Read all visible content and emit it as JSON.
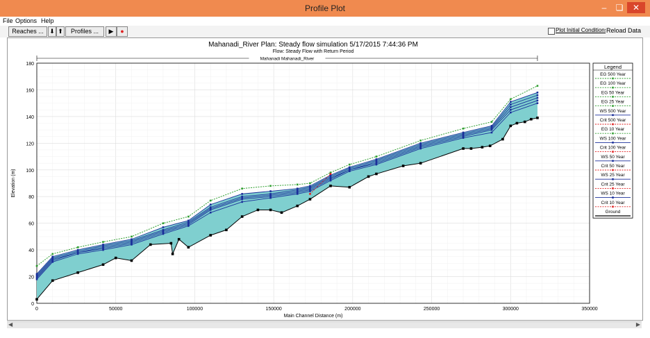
{
  "window": {
    "title": "Profile Plot"
  },
  "menu": [
    "File",
    "Options",
    "Help"
  ],
  "toolbar": {
    "reaches": "Reaches ...",
    "profiles": "Profiles ...",
    "plot_initial": "Plot Initial Conditions",
    "reload": "Reload Data"
  },
  "colors": {
    "titlebar": "#f08a4f",
    "fill": "#7fcfcf",
    "ws": "#1a2f9a",
    "eg": "#2e9e2e",
    "crit": "#e02020",
    "ground": "#000000"
  },
  "chart_data": {
    "type": "line",
    "title": "Mahanadi_River       Plan: Steady flow simulation    5/17/2015  7:44:36 PM",
    "subtitle": "Flow: Steady Flow with Return Period",
    "reach_label": "Mahanadi Mahanadi_River",
    "xlabel": "Main Channel Distance (m)",
    "ylabel": "Elevation (m)",
    "xlim": [
      0,
      350000
    ],
    "ylim": [
      0,
      180
    ],
    "xticks": [
      "0",
      "50000",
      "100000",
      "150000",
      "200000",
      "250000",
      "300000",
      "350000"
    ],
    "yticks": [
      "0",
      "20",
      "40",
      "60",
      "80",
      "100",
      "120",
      "140",
      "160",
      "180"
    ],
    "grid": true,
    "legend_position": "right",
    "legend_title": "Legend",
    "legend": [
      "EG 500 Year",
      "EG 100 Year",
      "EG 50 Year",
      "EG 25 Year",
      "WS 500 Year",
      "Crit 500 Year",
      "EG 10 Year",
      "WS 100 Year",
      "Crit 100 Year",
      "WS 50 Year",
      "Crit 50 Year",
      "WS 25 Year",
      "Crit 25 Year",
      "WS 10 Year",
      "Crit 10 Year",
      "Ground"
    ],
    "ground": {
      "x": [
        0,
        10000,
        26000,
        42000,
        50000,
        60000,
        72000,
        85000,
        86000,
        90000,
        96000,
        110000,
        120000,
        130000,
        140000,
        148000,
        155000,
        165000,
        173000,
        186000,
        198000,
        210000,
        215000,
        232000,
        243000,
        270000,
        275000,
        282000,
        287000,
        295000,
        300000,
        304000,
        309000,
        313000,
        317000
      ],
      "y": [
        3,
        17,
        23,
        29,
        34,
        32,
        44,
        45,
        37,
        48,
        42,
        51,
        55,
        65,
        70,
        70,
        68,
        73,
        78,
        88,
        87,
        95,
        97,
        103,
        105,
        116,
        116,
        117,
        118,
        123,
        133,
        135,
        136,
        138,
        139
      ]
    },
    "series": [
      {
        "name": "WS 10 Year",
        "x": [
          0,
          10000,
          26000,
          42000,
          60000,
          80000,
          96000,
          110000,
          130000,
          148000,
          165000,
          173000,
          186000,
          198000,
          215000,
          243000,
          270000,
          288000,
          300000,
          317000
        ],
        "y": [
          18,
          31,
          37,
          40,
          44,
          52,
          58,
          68,
          76,
          79,
          82,
          84,
          92,
          99,
          104,
          116,
          124,
          128,
          143,
          150
        ]
      },
      {
        "name": "WS 25 Year",
        "x": [
          0,
          10000,
          26000,
          42000,
          60000,
          80000,
          96000,
          110000,
          130000,
          148000,
          165000,
          173000,
          186000,
          198000,
          215000,
          243000,
          270000,
          288000,
          300000,
          317000
        ],
        "y": [
          19,
          32,
          38,
          41,
          45,
          53,
          59,
          70,
          78,
          80,
          83,
          85,
          93,
          100,
          105,
          117,
          125,
          130,
          145,
          152
        ]
      },
      {
        "name": "WS 50 Year",
        "x": [
          0,
          10000,
          26000,
          42000,
          60000,
          80000,
          96000,
          110000,
          130000,
          148000,
          165000,
          173000,
          186000,
          198000,
          215000,
          243000,
          270000,
          288000,
          300000,
          317000
        ],
        "y": [
          20,
          33,
          38,
          42,
          46,
          54,
          60,
          71,
          79,
          81,
          84,
          86,
          94,
          100,
          106,
          118,
          126,
          131,
          147,
          154
        ]
      },
      {
        "name": "WS 100 Year",
        "x": [
          0,
          10000,
          26000,
          42000,
          60000,
          80000,
          96000,
          110000,
          130000,
          148000,
          165000,
          173000,
          186000,
          198000,
          215000,
          243000,
          270000,
          288000,
          300000,
          317000
        ],
        "y": [
          21,
          34,
          39,
          43,
          47,
          55,
          61,
          72,
          80,
          82,
          85,
          87,
          95,
          101,
          107,
          119,
          127,
          132,
          149,
          156
        ]
      },
      {
        "name": "WS 500 Year",
        "x": [
          0,
          10000,
          26000,
          42000,
          60000,
          80000,
          96000,
          110000,
          130000,
          148000,
          165000,
          173000,
          186000,
          198000,
          215000,
          243000,
          270000,
          288000,
          300000,
          317000
        ],
        "y": [
          22,
          35,
          40,
          44,
          48,
          57,
          62,
          74,
          82,
          84,
          86,
          88,
          96,
          102,
          108,
          120,
          128,
          133,
          151,
          158
        ]
      },
      {
        "name": "EG 500 Year",
        "x": [
          0,
          10000,
          26000,
          42000,
          60000,
          80000,
          96000,
          110000,
          130000,
          148000,
          165000,
          173000,
          186000,
          198000,
          215000,
          243000,
          270000,
          288000,
          300000,
          317000
        ],
        "y": [
          28,
          37,
          42,
          46,
          50,
          60,
          65,
          77,
          86,
          88,
          89,
          90,
          98,
          104,
          110,
          122,
          131,
          136,
          153,
          163
        ]
      },
      {
        "name": "Crit 500 Year",
        "x": [
          173000,
          186000
        ],
        "y": [
          82,
          97
        ]
      }
    ]
  }
}
